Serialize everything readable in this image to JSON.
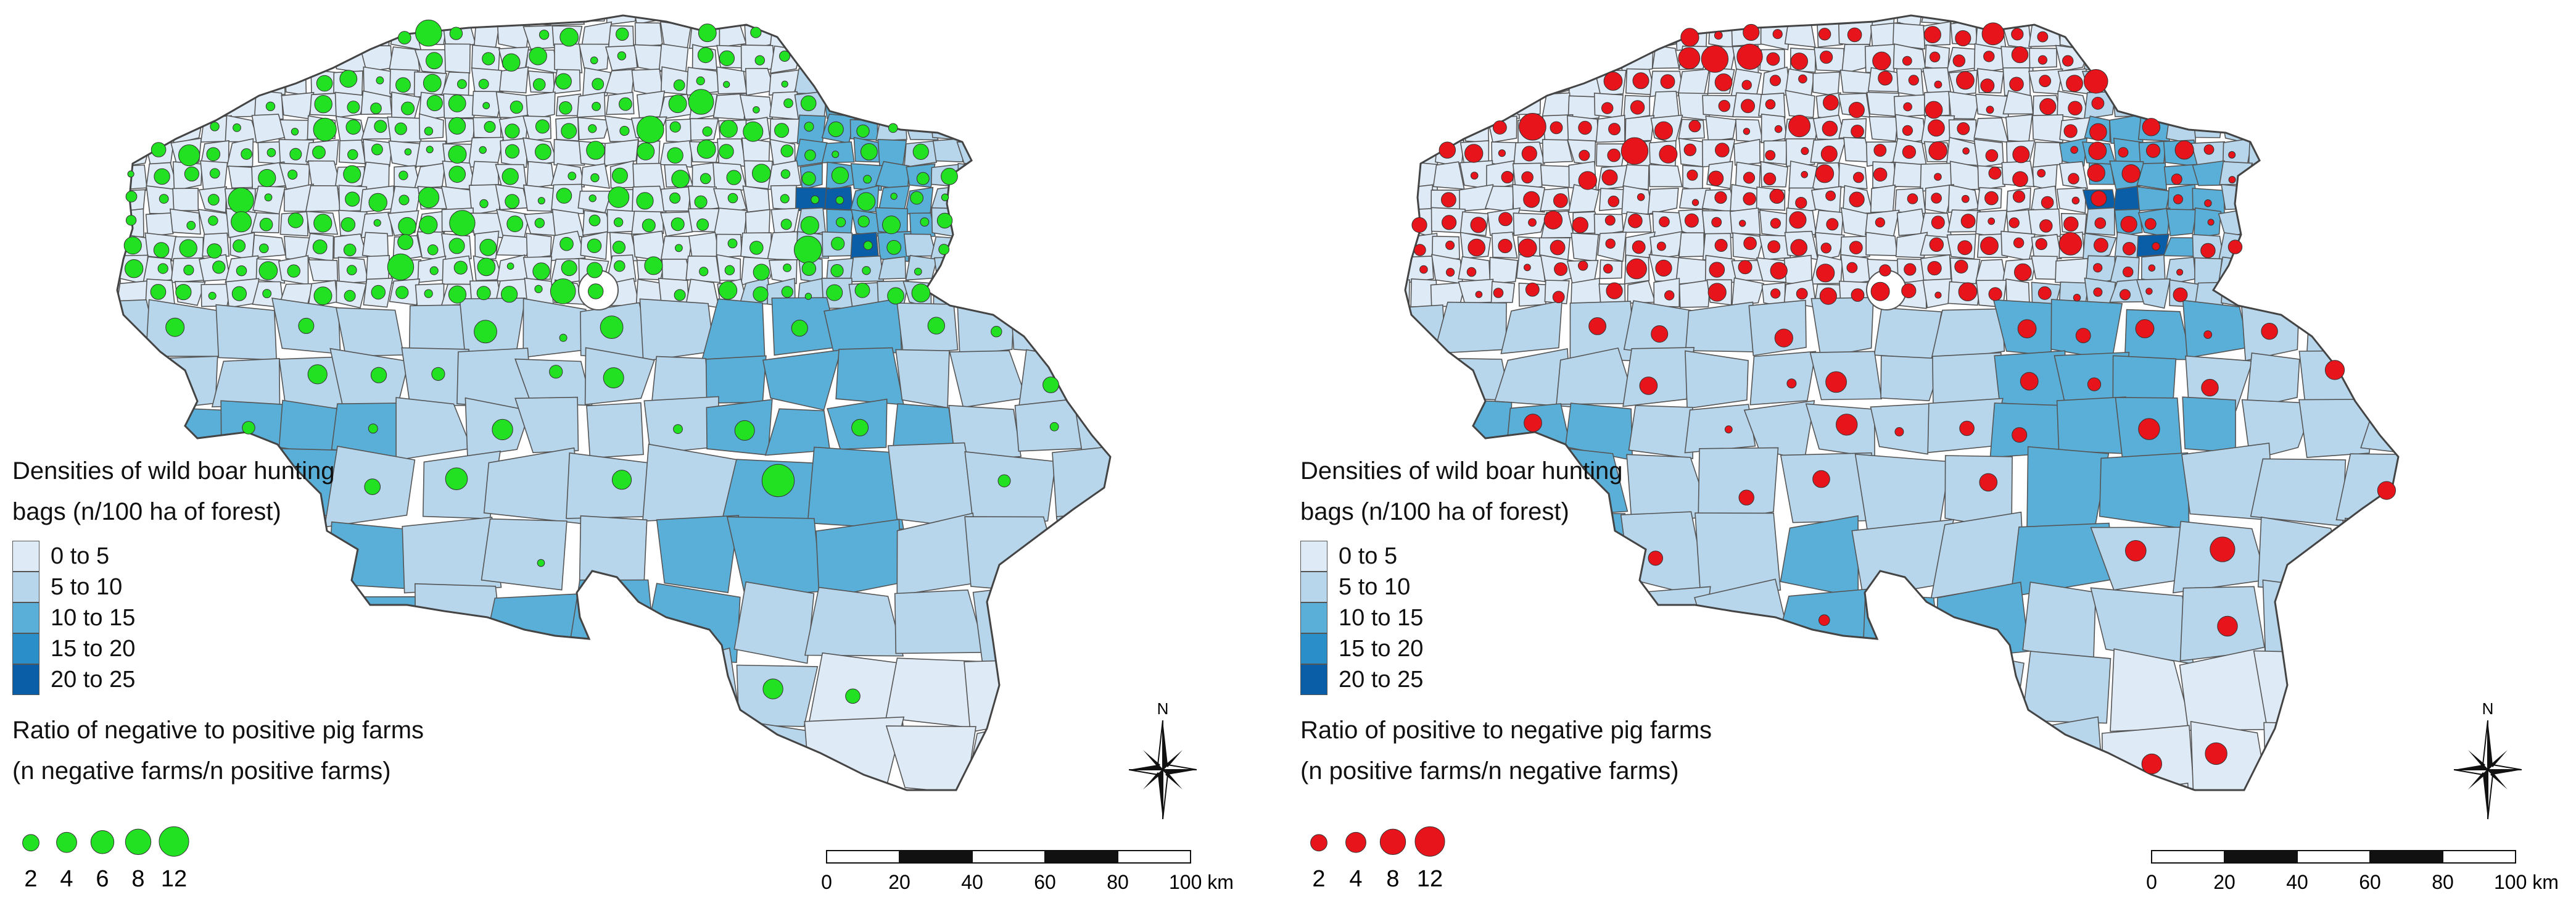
{
  "colors": {
    "class1": "#deebf7",
    "class2": "#b7d6ec",
    "class3": "#5aafd8",
    "class4": "#2a8fc9",
    "class5": "#0a5ea8",
    "border": "#555555",
    "green": "#22e022",
    "red": "#e8141b"
  },
  "panels": [
    {
      "legend_title_line1": "Densities of wild boar hunting",
      "legend_title_line2": "bags (n/100 ha of forest)",
      "classes": [
        "0 to 5",
        "5 to 10",
        "10 to 15",
        "15 to 20",
        "20 to 25"
      ],
      "ratio_title_line1": "Ratio of negative to positive pig farms",
      "ratio_title_line2": "(n negative farms/n positive farms)",
      "bubble_values": [
        "2",
        "4",
        "6",
        "8",
        "12"
      ],
      "bubble_color_key": "green",
      "north_label": "N",
      "scale_labels": [
        "0",
        "20",
        "40",
        "60",
        "80",
        "100 km"
      ]
    },
    {
      "legend_title_line1": "Densities of wild boar hunting",
      "legend_title_line2": "bags (n/100 ha of forest)",
      "classes": [
        "0 to 5",
        "5 to 10",
        "10 to 15",
        "15 to 20",
        "20 to 25"
      ],
      "ratio_title_line1": "Ratio of positive to negative pig farms",
      "ratio_title_line2": "(n positive farms/n negative farms)",
      "bubble_values": [
        "2",
        "4",
        "8",
        "12"
      ],
      "bubble_color_key": "red",
      "north_label": "N",
      "scale_labels": [
        "0",
        "20",
        "40",
        "60",
        "80",
        "100 km"
      ]
    }
  ]
}
